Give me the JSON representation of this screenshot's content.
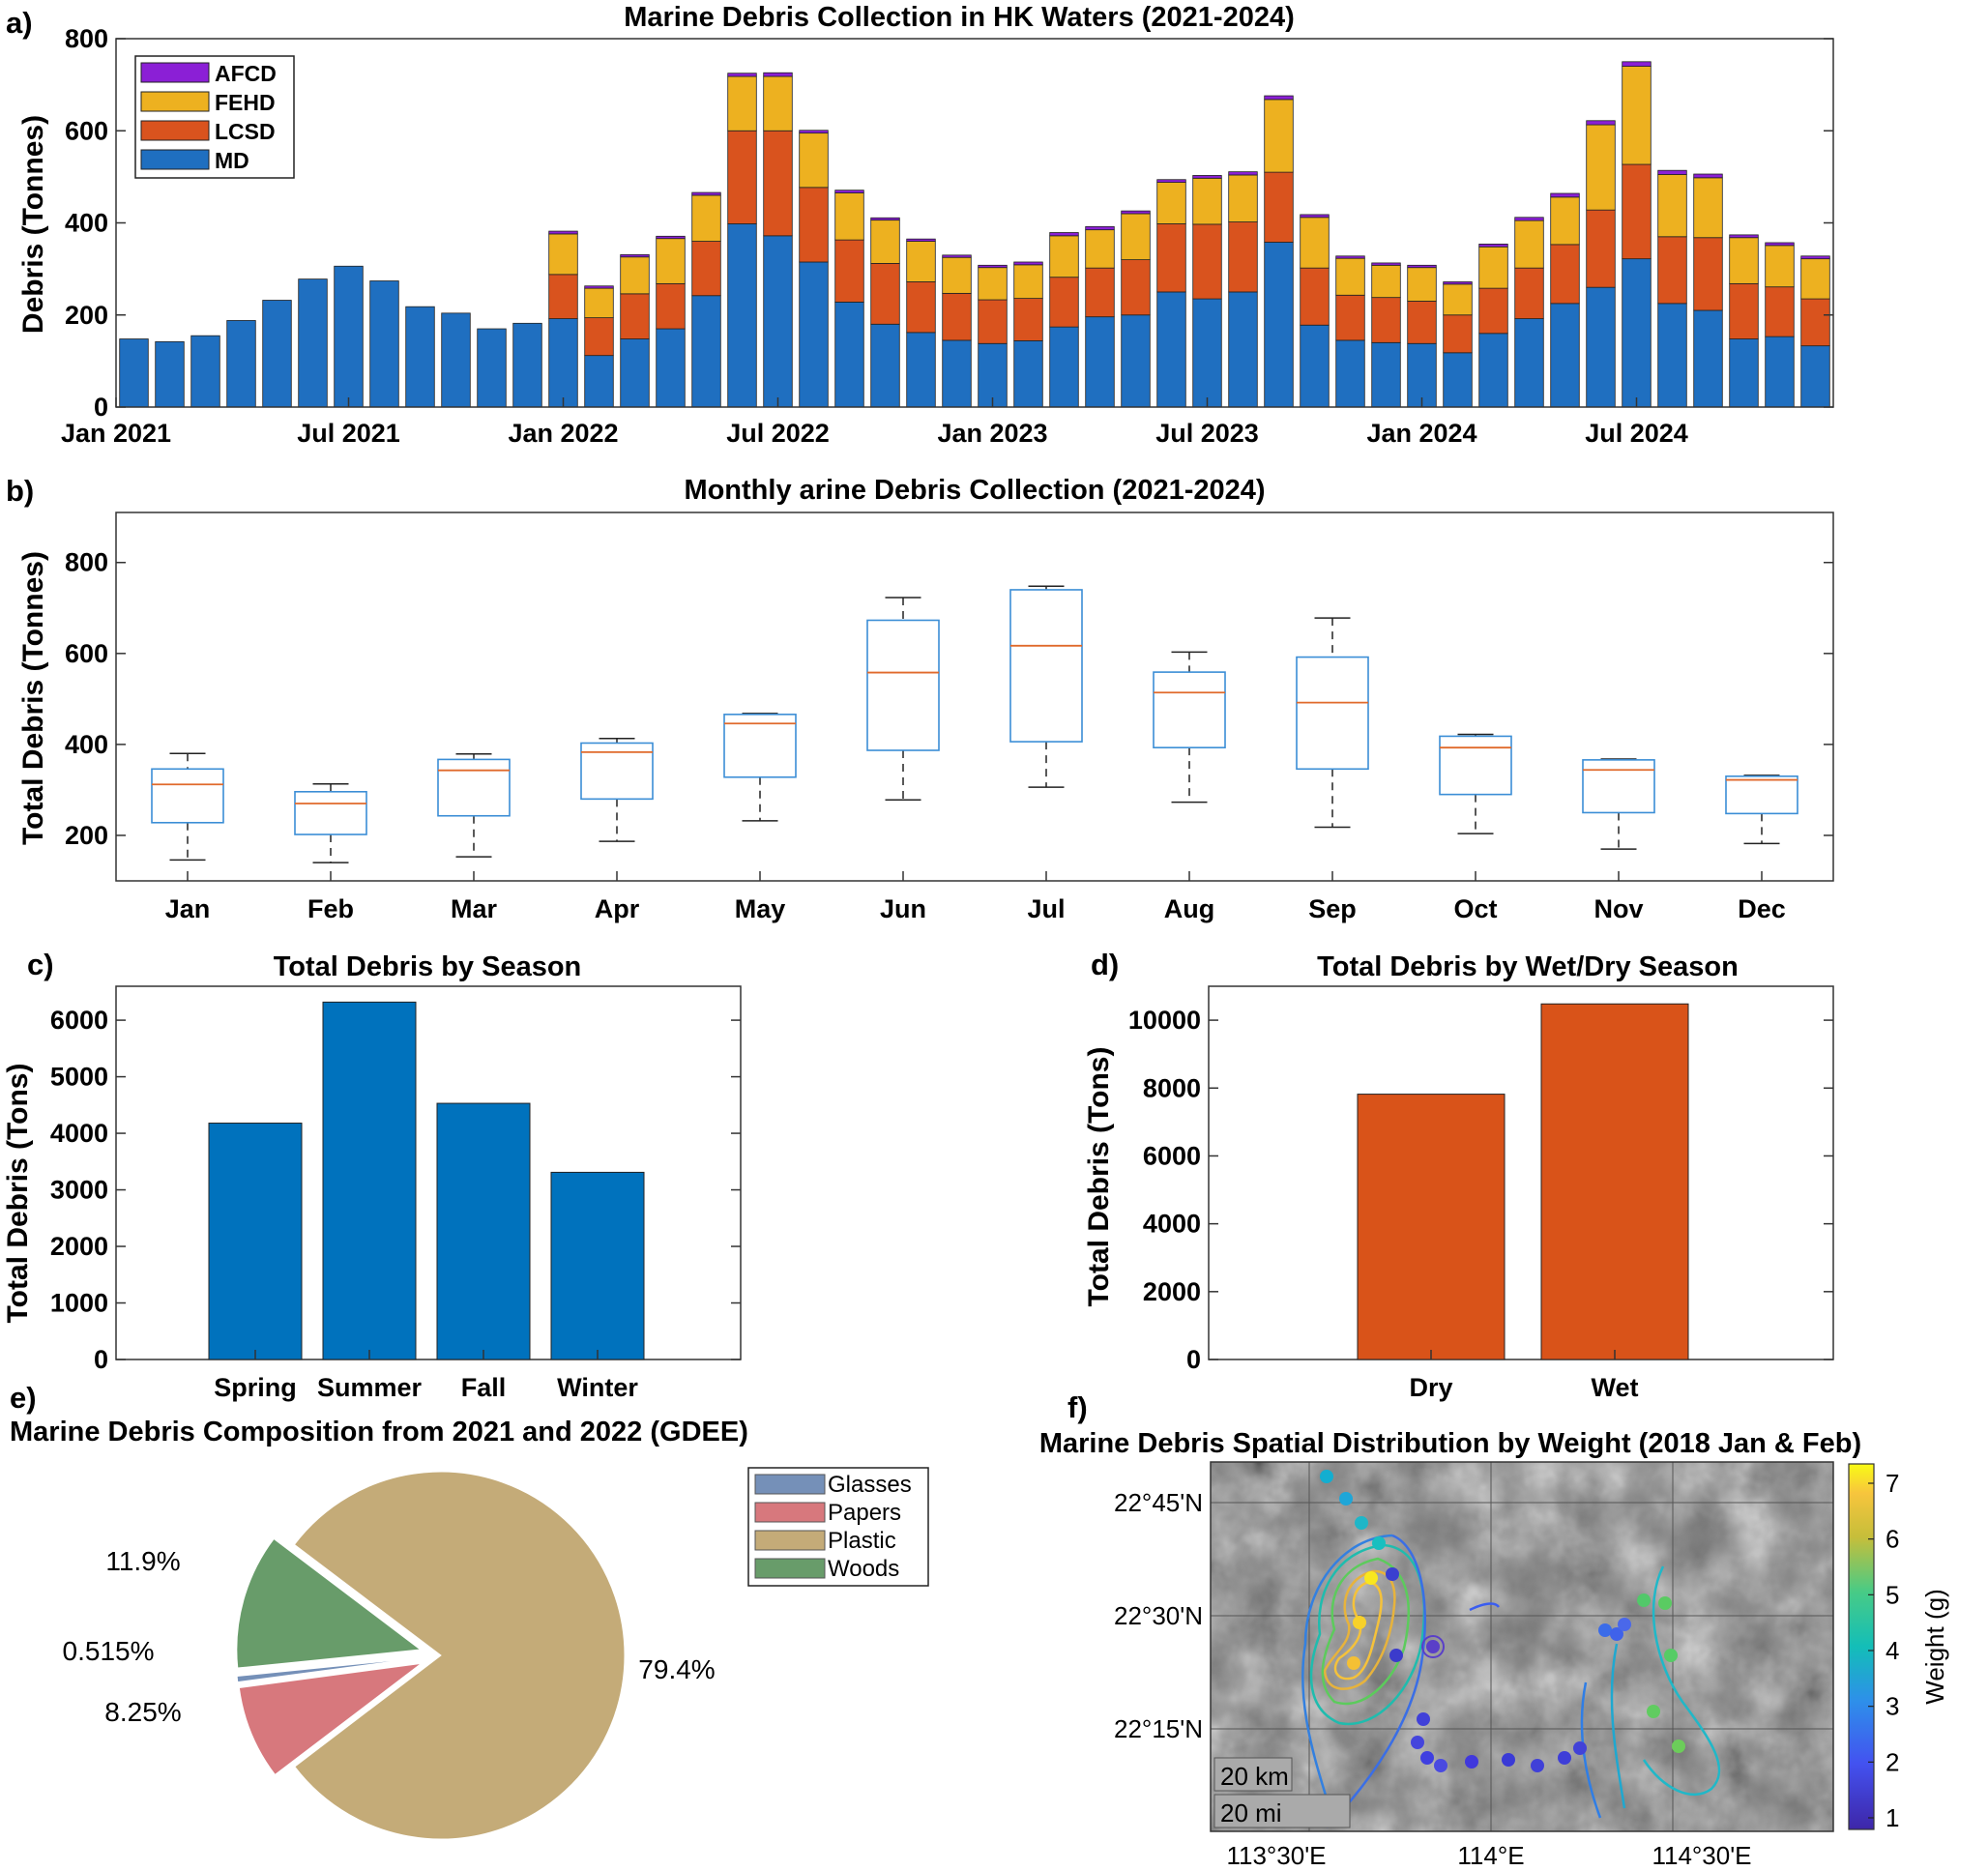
{
  "colors": {
    "MD": "#1f6fc0",
    "LCSD": "#d9531e",
    "FEHD": "#edb120",
    "AFCD": "#8b1fd6",
    "season_bar": "#0072bd",
    "wet_dry_bar": "#d95319",
    "Glasses": "#7590b8",
    "Papers": "#d7787d",
    "Plastic": "#c4ab78",
    "Woods": "#689c6a",
    "box": "#3b8ed6",
    "median": "#e06a2c"
  },
  "panel_labels": [
    "a)",
    "b)",
    "c)",
    "d)",
    "e)",
    "f)"
  ],
  "chart_data": [
    {
      "type": "bar",
      "stacked": true,
      "title": "Marine Debris Collection in HK Waters (2021-2024)",
      "ylabel": "Debris (Tonnes)",
      "ylim": [
        0,
        800
      ],
      "yticks": [
        0,
        200,
        400,
        600,
        800
      ],
      "xtick_labels": [
        "Jan 2021",
        "Jul 2021",
        "Jan 2022",
        "Jul 2022",
        "Jan 2023",
        "Jul 2023",
        "Jan 2024",
        "Jul 2024"
      ],
      "xtick_index": [
        0,
        6,
        12,
        18,
        24,
        30,
        36,
        42
      ],
      "legend": [
        "AFCD",
        "FEHD",
        "LCSD",
        "MD"
      ],
      "legend_position": "top-left",
      "series": [
        {
          "name": "MD",
          "values": [
            148,
            142,
            155,
            188,
            232,
            278,
            306,
            274,
            218,
            204,
            170,
            182,
            192,
            112,
            148,
            170,
            242,
            398,
            372,
            315,
            228,
            180,
            162,
            145,
            138,
            144,
            174,
            196,
            200,
            250,
            235,
            250,
            358,
            178,
            145,
            140,
            138,
            118,
            160,
            192,
            225,
            260,
            322,
            225,
            210,
            148,
            153,
            133
          ]
        },
        {
          "name": "LCSD",
          "values": [
            0,
            0,
            0,
            0,
            0,
            0,
            0,
            0,
            0,
            0,
            0,
            0,
            96,
            82,
            98,
            98,
            118,
            202,
            228,
            162,
            135,
            132,
            110,
            102,
            95,
            92,
            108,
            106,
            120,
            148,
            162,
            152,
            152,
            124,
            98,
            98,
            92,
            82,
            98,
            110,
            128,
            168,
            205,
            145,
            158,
            120,
            108,
            102
          ]
        },
        {
          "name": "FEHD",
          "values": [
            0,
            0,
            0,
            0,
            0,
            0,
            0,
            0,
            0,
            0,
            0,
            0,
            88,
            64,
            80,
            98,
            100,
            118,
            118,
            118,
            102,
            94,
            88,
            78,
            70,
            73,
            90,
            83,
            100,
            90,
            100,
            102,
            158,
            110,
            80,
            70,
            73,
            67,
            90,
            103,
            103,
            185,
            213,
            135,
            130,
            100,
            90,
            87
          ]
        },
        {
          "name": "AFCD",
          "values": [
            0,
            0,
            0,
            0,
            0,
            0,
            0,
            0,
            0,
            0,
            0,
            0,
            6,
            5,
            5,
            5,
            6,
            7,
            8,
            6,
            6,
            5,
            5,
            5,
            5,
            6,
            7,
            7,
            6,
            6,
            6,
            7,
            8,
            6,
            5,
            5,
            5,
            5,
            6,
            7,
            8,
            9,
            10,
            9,
            8,
            6,
            6,
            6
          ]
        }
      ]
    },
    {
      "type": "box",
      "title": "Monthly arine Debris Collection (2021-2024)",
      "ylabel": "Total Debris (Tonnes)",
      "ylim": [
        100,
        910
      ],
      "yticks": [
        200,
        400,
        600,
        800
      ],
      "categories": [
        "Jan",
        "Feb",
        "Mar",
        "Apr",
        "May",
        "Jun",
        "Jul",
        "Aug",
        "Sep",
        "Oct",
        "Nov",
        "Dec"
      ],
      "boxes": [
        {
          "min": 146,
          "q1": 228,
          "median": 312,
          "q3": 346,
          "max": 380
        },
        {
          "min": 140,
          "q1": 202,
          "median": 270,
          "q3": 296,
          "max": 313
        },
        {
          "min": 153,
          "q1": 243,
          "median": 343,
          "q3": 367,
          "max": 379
        },
        {
          "min": 187,
          "q1": 280,
          "median": 383,
          "q3": 403,
          "max": 413
        },
        {
          "min": 232,
          "q1": 328,
          "median": 446,
          "q3": 466,
          "max": 468
        },
        {
          "min": 278,
          "q1": 387,
          "median": 558,
          "q3": 673,
          "max": 723
        },
        {
          "min": 306,
          "q1": 406,
          "median": 617,
          "q3": 740,
          "max": 748
        },
        {
          "min": 273,
          "q1": 393,
          "median": 514,
          "q3": 559,
          "max": 603
        },
        {
          "min": 218,
          "q1": 346,
          "median": 492,
          "q3": 592,
          "max": 678
        },
        {
          "min": 204,
          "q1": 290,
          "median": 393,
          "q3": 418,
          "max": 422
        },
        {
          "min": 170,
          "q1": 250,
          "median": 344,
          "q3": 366,
          "max": 368
        },
        {
          "min": 182,
          "q1": 248,
          "median": 322,
          "q3": 330,
          "max": 332
        }
      ]
    },
    {
      "type": "bar",
      "title": "Total Debris by Season",
      "ylabel": "Total Debris (Tons)",
      "ylim": [
        0,
        6600
      ],
      "yticks": [
        0,
        1000,
        2000,
        3000,
        4000,
        5000,
        6000
      ],
      "categories": [
        "Spring",
        "Summer",
        "Fall",
        "Winter"
      ],
      "values": [
        4180,
        6320,
        4530,
        3310
      ]
    },
    {
      "type": "bar",
      "title": "Total Debris by Wet/Dry Season",
      "ylabel": "Total Debris (Tons)",
      "ylim": [
        0,
        11000
      ],
      "yticks": [
        0,
        2000,
        4000,
        6000,
        8000,
        10000
      ],
      "categories": [
        "Dry",
        "Wet"
      ],
      "values": [
        7820,
        10480
      ]
    },
    {
      "type": "pie",
      "title": "Marine Debris Composition from 2021 and 2022 (GDEE)",
      "legend": [
        "Glasses",
        "Papers",
        "Plastic",
        "Woods"
      ],
      "slices": [
        {
          "name": "Glasses",
          "value": 0.515,
          "label": "0.515%"
        },
        {
          "name": "Papers",
          "value": 8.25,
          "label": "8.25%"
        },
        {
          "name": "Plastic",
          "value": 79.4,
          "label": "79.4%"
        },
        {
          "name": "Woods",
          "value": 11.9,
          "label": "11.9%"
        }
      ]
    },
    {
      "type": "map",
      "title": "Marine Debris Spatial Distribution by Weight (2018 Jan & Feb)",
      "lat_labels": [
        "22°45'N",
        "22°30'N",
        "22°15'N"
      ],
      "lon_labels": [
        "113°30'E",
        "114°E",
        "114°30'E"
      ],
      "colorbar_label": "Weight (g)",
      "colorbar_ticks": [
        "1",
        "2",
        "3",
        "4",
        "5",
        "6",
        "7"
      ],
      "scale_bars": [
        "20 km",
        "20 mi"
      ]
    }
  ]
}
